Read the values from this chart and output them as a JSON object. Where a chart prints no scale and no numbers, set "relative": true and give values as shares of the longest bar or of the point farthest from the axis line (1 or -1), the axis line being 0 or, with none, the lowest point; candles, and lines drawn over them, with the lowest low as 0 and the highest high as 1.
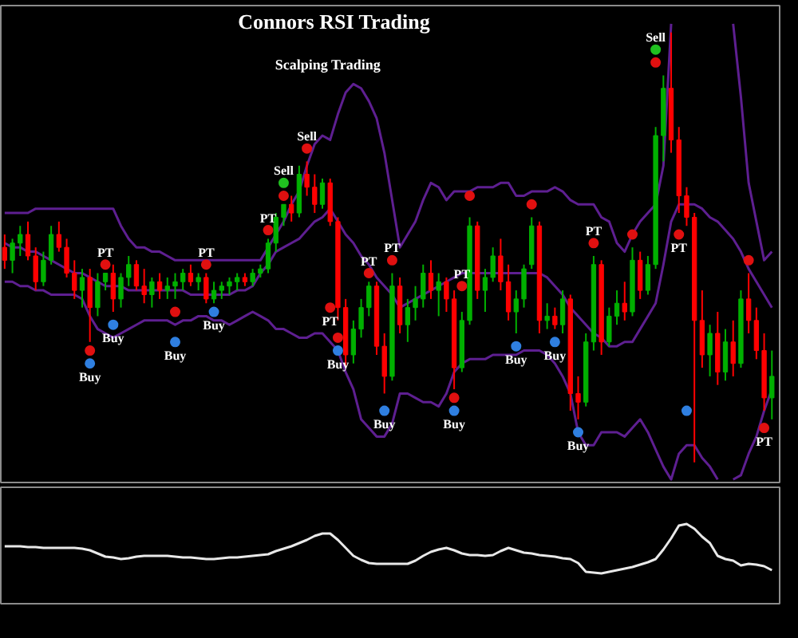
{
  "chart_data": [
    {
      "type": "candlestick",
      "title": "Connors RSI Trading",
      "subtitle": "Scalping Trading",
      "relative": true,
      "categories": [
        null,
        null,
        null,
        null,
        null,
        null,
        null,
        null,
        null,
        null,
        null,
        null,
        null,
        null,
        null,
        null,
        null,
        null,
        null,
        null,
        null,
        null,
        null,
        null,
        null,
        null,
        null,
        null,
        null,
        null,
        null,
        null,
        null,
        null,
        null,
        null,
        null,
        null,
        null,
        null,
        null,
        null,
        null,
        null,
        null,
        null,
        null,
        null,
        null,
        null,
        null,
        null,
        null,
        null,
        null,
        null,
        null,
        null,
        null,
        null,
        null,
        null,
        null,
        null,
        null,
        null,
        null,
        null,
        null,
        null,
        null,
        null,
        null,
        null,
        null,
        null,
        null,
        null,
        null,
        null,
        null,
        null,
        null,
        null,
        null,
        null,
        null,
        null,
        null,
        null,
        null,
        null,
        null,
        null,
        null,
        null,
        null,
        null,
        null,
        null
      ],
      "ohlc": [
        [
          0.5,
          0.53,
          0.45,
          0.47
        ],
        [
          0.47,
          0.52,
          0.44,
          0.51
        ],
        [
          0.51,
          0.55,
          0.48,
          0.53
        ],
        [
          0.53,
          0.56,
          0.47,
          0.48
        ],
        [
          0.48,
          0.5,
          0.4,
          0.42
        ],
        [
          0.42,
          0.49,
          0.41,
          0.47
        ],
        [
          0.47,
          0.55,
          0.46,
          0.53
        ],
        [
          0.53,
          0.56,
          0.49,
          0.5
        ],
        [
          0.5,
          0.52,
          0.43,
          0.44
        ],
        [
          0.44,
          0.47,
          0.38,
          0.4
        ],
        [
          0.4,
          0.45,
          0.36,
          0.43
        ],
        [
          0.43,
          0.45,
          0.28,
          0.36
        ],
        [
          0.36,
          0.44,
          0.34,
          0.42
        ],
        [
          0.42,
          0.44,
          0.4,
          0.44
        ],
        [
          0.44,
          0.46,
          0.35,
          0.38
        ],
        [
          0.38,
          0.44,
          0.36,
          0.43
        ],
        [
          0.43,
          0.48,
          0.41,
          0.46
        ],
        [
          0.46,
          0.47,
          0.4,
          0.41
        ],
        [
          0.41,
          0.45,
          0.37,
          0.39
        ],
        [
          0.39,
          0.43,
          0.36,
          0.42
        ],
        [
          0.42,
          0.44,
          0.38,
          0.4
        ],
        [
          0.4,
          0.43,
          0.38,
          0.41
        ],
        [
          0.41,
          0.44,
          0.38,
          0.42
        ],
        [
          0.42,
          0.45,
          0.4,
          0.44
        ],
        [
          0.44,
          0.46,
          0.41,
          0.42
        ],
        [
          0.42,
          0.44,
          0.4,
          0.43
        ],
        [
          0.43,
          0.44,
          0.37,
          0.38
        ],
        [
          0.38,
          0.42,
          0.37,
          0.4
        ],
        [
          0.4,
          0.42,
          0.38,
          0.41
        ],
        [
          0.41,
          0.43,
          0.39,
          0.42
        ],
        [
          0.42,
          0.44,
          0.4,
          0.43
        ],
        [
          0.43,
          0.44,
          0.41,
          0.42
        ],
        [
          0.42,
          0.45,
          0.41,
          0.44
        ],
        [
          0.44,
          0.46,
          0.43,
          0.45
        ],
        [
          0.45,
          0.52,
          0.44,
          0.51
        ],
        [
          0.51,
          0.58,
          0.49,
          0.57
        ],
        [
          0.57,
          0.6,
          0.55,
          0.6
        ],
        [
          0.6,
          0.62,
          0.56,
          0.58
        ],
        [
          0.58,
          0.69,
          0.57,
          0.67
        ],
        [
          0.67,
          0.7,
          0.62,
          0.64
        ],
        [
          0.64,
          0.67,
          0.58,
          0.6
        ],
        [
          0.6,
          0.66,
          0.59,
          0.65
        ],
        [
          0.65,
          0.66,
          0.55,
          0.56
        ],
        [
          0.56,
          0.57,
          0.33,
          0.36
        ],
        [
          0.36,
          0.38,
          0.22,
          0.25
        ],
        [
          0.25,
          0.33,
          0.23,
          0.31
        ],
        [
          0.31,
          0.38,
          0.29,
          0.36
        ],
        [
          0.36,
          0.42,
          0.34,
          0.41
        ],
        [
          0.41,
          0.42,
          0.25,
          0.27
        ],
        [
          0.27,
          0.3,
          0.16,
          0.2
        ],
        [
          0.2,
          0.44,
          0.19,
          0.41
        ],
        [
          0.41,
          0.43,
          0.3,
          0.32
        ],
        [
          0.32,
          0.38,
          0.28,
          0.36
        ],
        [
          0.36,
          0.41,
          0.33,
          0.38
        ],
        [
          0.38,
          0.46,
          0.36,
          0.44
        ],
        [
          0.44,
          0.47,
          0.38,
          0.4
        ],
        [
          0.4,
          0.44,
          0.34,
          0.42
        ],
        [
          0.42,
          0.43,
          0.35,
          0.38
        ],
        [
          0.38,
          0.4,
          0.17,
          0.22
        ],
        [
          0.22,
          0.35,
          0.21,
          0.33
        ],
        [
          0.33,
          0.57,
          0.32,
          0.55
        ],
        [
          0.55,
          0.56,
          0.38,
          0.4
        ],
        [
          0.4,
          0.45,
          0.35,
          0.43
        ],
        [
          0.43,
          0.5,
          0.42,
          0.48
        ],
        [
          0.48,
          0.52,
          0.4,
          0.42
        ],
        [
          0.42,
          0.46,
          0.33,
          0.35
        ],
        [
          0.35,
          0.4,
          0.3,
          0.38
        ],
        [
          0.38,
          0.46,
          0.36,
          0.45
        ],
        [
          0.46,
          0.57,
          0.45,
          0.55
        ],
        [
          0.55,
          0.56,
          0.3,
          0.33
        ],
        [
          0.33,
          0.37,
          0.31,
          0.34
        ],
        [
          0.34,
          0.36,
          0.31,
          0.32
        ],
        [
          0.32,
          0.4,
          0.3,
          0.38
        ],
        [
          0.38,
          0.39,
          0.12,
          0.16
        ],
        [
          0.16,
          0.2,
          0.1,
          0.14
        ],
        [
          0.14,
          0.3,
          0.13,
          0.28
        ],
        [
          0.28,
          0.48,
          0.26,
          0.46
        ],
        [
          0.46,
          0.47,
          0.25,
          0.28
        ],
        [
          0.28,
          0.36,
          0.27,
          0.34
        ],
        [
          0.34,
          0.4,
          0.32,
          0.37
        ],
        [
          0.37,
          0.42,
          0.33,
          0.35
        ],
        [
          0.35,
          0.5,
          0.34,
          0.47
        ],
        [
          0.47,
          0.49,
          0.38,
          0.4
        ],
        [
          0.4,
          0.48,
          0.39,
          0.46
        ],
        [
          0.46,
          0.78,
          0.45,
          0.76
        ],
        [
          0.76,
          0.9,
          0.7,
          0.87
        ],
        [
          0.87,
          1.0,
          0.72,
          0.75
        ],
        [
          0.75,
          0.78,
          0.58,
          0.62
        ],
        [
          0.62,
          0.64,
          0.55,
          0.57
        ],
        [
          0.57,
          0.58,
          0.0,
          0.33
        ],
        [
          0.33,
          0.4,
          0.22,
          0.25
        ],
        [
          0.25,
          0.32,
          0.2,
          0.3
        ],
        [
          0.3,
          0.35,
          0.18,
          0.21
        ],
        [
          0.21,
          0.31,
          0.19,
          0.28
        ],
        [
          0.28,
          0.33,
          0.2,
          0.23
        ],
        [
          0.23,
          0.4,
          0.22,
          0.38
        ],
        [
          0.38,
          0.44,
          0.3,
          0.33
        ],
        [
          0.33,
          0.36,
          0.24,
          0.26
        ],
        [
          0.26,
          0.3,
          0.12,
          0.15
        ],
        [
          0.15,
          0.26,
          0.1,
          0.2
        ]
      ],
      "colors": [
        "#ff0000",
        "#00b000",
        "#00b000",
        "#ff0000",
        "#ff0000",
        "#00b000",
        "#00b000",
        "#ff0000",
        "#ff0000",
        "#ff0000",
        "#00b000",
        "#ff0000",
        "#00b000",
        "#00b000",
        "#ff0000",
        "#00b000",
        "#00b000",
        "#ff0000",
        "#ff0000",
        "#00b000",
        "#ff0000",
        "#00b000",
        "#00b000",
        "#00b000",
        "#ff0000",
        "#00b000",
        "#ff0000",
        "#00b000",
        "#00b000",
        "#00b000",
        "#00b000",
        "#ff0000",
        "#00b000",
        "#00b000",
        "#00b000",
        "#00b000",
        "#00b000",
        "#ff0000",
        "#00b000",
        "#ff0000",
        "#ff0000",
        "#00b000",
        "#ff0000",
        "#ff0000",
        "#ff0000",
        "#00b000",
        "#00b000",
        "#00b000",
        "#ff0000",
        "#ff0000",
        "#00b000",
        "#ff0000",
        "#00b000",
        "#00b000",
        "#00b000",
        "#ff0000",
        "#00b000",
        "#ff0000",
        "#ff0000",
        "#00b000",
        "#00b000",
        "#ff0000",
        "#00b000",
        "#00b000",
        "#ff0000",
        "#ff0000",
        "#00b000",
        "#00b000",
        "#00b000",
        "#ff0000",
        "#00b000",
        "#ff0000",
        "#00b000",
        "#ff0000",
        "#ff0000",
        "#00b000",
        "#00b000",
        "#ff0000",
        "#00b000",
        "#00b000",
        "#ff0000",
        "#00b000",
        "#ff0000",
        "#00b000",
        "#00b000",
        "#00b000",
        "#ff0000",
        "#ff0000",
        "#ff0000",
        "#ff0000",
        "#ff0000",
        "#00b000",
        "#ff0000",
        "#00b000",
        "#ff0000",
        "#00b000",
        "#ff0000",
        "#ff0000",
        "#ff0000",
        "#00b000"
      ],
      "series": [
        {
          "type": "line",
          "color": "#5e1f91",
          "values": [
            0.58,
            0.58,
            0.58,
            0.58,
            0.59,
            0.59,
            0.59,
            0.59,
            0.59,
            0.59,
            0.59,
            0.59,
            0.59,
            0.59,
            0.59,
            0.55,
            0.52,
            0.5,
            0.5,
            0.49,
            0.49,
            0.48,
            0.47,
            0.47,
            0.47,
            0.47,
            0.47,
            0.47,
            0.47,
            0.47,
            0.47,
            0.47,
            0.47,
            0.47,
            0.5,
            0.53,
            0.56,
            0.6,
            0.63,
            0.69,
            0.74,
            0.76,
            0.75,
            0.81,
            0.86,
            0.88,
            0.87,
            0.84,
            0.8,
            0.72,
            0.61,
            0.5,
            0.53,
            0.56,
            0.61,
            0.65,
            0.64,
            0.61,
            0.63,
            0.63,
            0.63,
            0.64,
            0.64,
            0.64,
            0.65,
            0.65,
            0.62,
            0.62,
            0.63,
            0.63,
            0.63,
            0.64,
            0.63,
            0.61,
            0.6,
            0.6,
            0.6,
            0.57,
            0.56,
            0.51,
            0.49,
            0.53,
            0.56,
            0.58,
            0.6,
            0.69,
            1.02,
            null,
            null,
            null,
            null,
            null,
            null,
            null,
            1.02,
            0.85,
            0.65,
            0.56,
            0.47,
            0.49
          ]
        },
        {
          "type": "line",
          "color": "#5e1f91",
          "values": [
            0.51,
            0.5,
            0.5,
            0.49,
            0.49,
            0.48,
            0.47,
            0.46,
            0.45,
            0.44,
            0.44,
            0.43,
            0.42,
            0.41,
            0.41,
            0.41,
            0.4,
            0.4,
            0.4,
            0.4,
            0.4,
            0.4,
            0.4,
            0.4,
            0.39,
            0.39,
            0.39,
            0.39,
            0.39,
            0.39,
            0.4,
            0.4,
            0.41,
            0.44,
            0.46,
            0.49,
            0.5,
            0.51,
            0.52,
            0.54,
            0.56,
            0.57,
            0.59,
            0.56,
            0.53,
            0.51,
            0.48,
            0.46,
            0.43,
            0.41,
            0.39,
            0.36,
            0.37,
            0.38,
            0.39,
            0.4,
            0.41,
            0.42,
            0.43,
            0.44,
            0.44,
            0.44,
            0.44,
            0.44,
            0.44,
            0.44,
            0.44,
            0.44,
            0.44,
            0.44,
            0.43,
            0.41,
            0.39,
            0.36,
            0.34,
            0.32,
            0.3,
            0.29,
            0.27,
            0.27,
            0.28,
            0.28,
            0.31,
            0.34,
            0.37,
            0.46,
            0.56,
            0.6,
            0.6,
            0.6,
            0.59,
            0.57,
            0.56,
            0.54,
            0.52,
            0.49,
            0.45,
            0.42,
            0.39,
            0.36
          ]
        },
        {
          "type": "line",
          "color": "#5e1f91",
          "values": [
            0.42,
            0.42,
            0.41,
            0.41,
            0.4,
            0.4,
            0.39,
            0.39,
            0.39,
            0.39,
            0.38,
            0.34,
            0.31,
            0.3,
            0.29,
            0.3,
            0.31,
            0.32,
            0.33,
            0.33,
            0.33,
            0.33,
            0.32,
            0.33,
            0.33,
            0.34,
            0.34,
            0.33,
            0.33,
            0.32,
            0.33,
            0.34,
            0.35,
            0.34,
            0.33,
            0.31,
            0.31,
            0.3,
            0.29,
            0.29,
            0.3,
            0.3,
            0.28,
            0.26,
            0.21,
            0.17,
            0.1,
            0.08,
            0.06,
            0.06,
            0.09,
            0.16,
            0.16,
            0.15,
            0.14,
            0.14,
            0.13,
            0.16,
            0.21,
            0.23,
            0.24,
            0.24,
            0.24,
            0.25,
            0.25,
            0.25,
            0.25,
            0.26,
            0.26,
            0.26,
            0.25,
            0.23,
            0.2,
            0.16,
            0.07,
            0.04,
            0.04,
            0.07,
            0.07,
            0.07,
            0.06,
            0.08,
            0.1,
            0.07,
            0.03,
            -0.01,
            -0.04,
            0.02,
            0.04,
            0.04,
            0.01,
            -0.01,
            -0.04,
            null,
            -0.04,
            -0.03,
            0.02,
            0.06,
            0.12,
            0.17
          ]
        },
        {
          "type": "scatter",
          "name": "Buy",
          "color": "#2f7fe0",
          "marker": "circle",
          "values": [
            null,
            null,
            null,
            null,
            null,
            null,
            null,
            null,
            null,
            null,
            null,
            0.23,
            null,
            null,
            0.32,
            null,
            null,
            null,
            null,
            null,
            null,
            null,
            0.28,
            null,
            null,
            null,
            null,
            0.35,
            null,
            null,
            null,
            null,
            null,
            null,
            null,
            null,
            null,
            null,
            null,
            null,
            null,
            null,
            null,
            0.26,
            null,
            null,
            null,
            null,
            null,
            0.12,
            null,
            null,
            null,
            null,
            null,
            null,
            null,
            null,
            0.12,
            null,
            null,
            null,
            null,
            null,
            null,
            null,
            0.27,
            null,
            null,
            null,
            null,
            0.28,
            null,
            null,
            0.07,
            null,
            null,
            null,
            null,
            null,
            null,
            null,
            null,
            null,
            null,
            null,
            null,
            null,
            null,
            null,
            null,
            null,
            null,
            null,
            null,
            null,
            null,
            null,
            null,
            null
          ]
        },
        {
          "type": "scatter",
          "name": "Sell",
          "color": "#e01010",
          "marker": "circle",
          "values": [
            null,
            null,
            null,
            null,
            null,
            null,
            null,
            null,
            null,
            null,
            null,
            null,
            null,
            null,
            null,
            null,
            null,
            null,
            null,
            null,
            null,
            null,
            null,
            null,
            null,
            null,
            null,
            null,
            null,
            null,
            null,
            null,
            null,
            null,
            null,
            null,
            0.62,
            null,
            null,
            0.73,
            null,
            null,
            null,
            null,
            null,
            null,
            null,
            null,
            null,
            null,
            null,
            null,
            null,
            null,
            null,
            null,
            null,
            null,
            null,
            null,
            null,
            null,
            null,
            null,
            null,
            null,
            null,
            null,
            null,
            null,
            null,
            null,
            null,
            null,
            null,
            null,
            null,
            null,
            null,
            null,
            null,
            null,
            null,
            null,
            0.93,
            null,
            null,
            null,
            null,
            null,
            null,
            null,
            null,
            null,
            null,
            null,
            null,
            null,
            null,
            null
          ]
        },
        {
          "type": "scatter",
          "name": "PT",
          "color": "#e01010",
          "marker": "circle",
          "values": [
            null,
            null,
            null,
            null,
            null,
            null,
            null,
            null,
            null,
            null,
            null,
            null,
            null,
            0.46,
            null,
            null,
            null,
            null,
            null,
            null,
            null,
            null,
            null,
            null,
            null,
            null,
            0.46,
            null,
            null,
            null,
            null,
            null,
            null,
            null,
            0.54,
            null,
            null,
            null,
            null,
            null,
            null,
            null,
            0.36,
            null,
            null,
            null,
            null,
            0.44,
            null,
            null,
            0.47,
            null,
            null,
            null,
            null,
            null,
            null,
            null,
            null,
            0.41,
            null,
            null,
            null,
            null,
            null,
            null,
            null,
            null,
            null,
            null,
            null,
            null,
            null,
            null,
            null,
            null,
            0.51,
            null,
            null,
            null,
            null,
            null,
            null,
            null,
            null,
            null,
            null,
            0.53,
            null,
            null,
            null,
            null,
            null,
            null,
            null,
            null,
            null,
            null,
            0.08,
            null
          ]
        },
        {
          "type": "scatter",
          "color": "#e01010",
          "marker": "circle",
          "values": [
            null,
            null,
            null,
            null,
            null,
            null,
            null,
            null,
            null,
            null,
            null,
            0.26,
            null,
            null,
            null,
            null,
            null,
            null,
            null,
            null,
            null,
            null,
            0.35,
            null,
            null,
            null,
            null,
            null,
            null,
            null,
            null,
            null,
            null,
            null,
            null,
            null,
            null,
            null,
            null,
            null,
            null,
            null,
            null,
            0.29,
            null,
            null,
            null,
            null,
            null,
            null,
            null,
            null,
            null,
            null,
            null,
            null,
            null,
            null,
            0.15,
            null,
            0.62,
            null,
            null,
            null,
            null,
            null,
            null,
            null,
            0.6,
            null,
            null,
            null,
            null,
            null,
            null,
            null,
            null,
            null,
            null,
            null,
            null,
            0.53,
            null,
            null,
            null,
            null,
            null,
            null,
            null,
            null,
            null,
            null,
            null,
            null,
            null,
            null,
            0.47,
            null,
            null,
            null
          ]
        },
        {
          "type": "scatter",
          "color": "#20c020",
          "marker": "circle",
          "values": [
            null,
            null,
            null,
            null,
            null,
            null,
            null,
            null,
            null,
            null,
            null,
            null,
            null,
            null,
            null,
            null,
            null,
            null,
            null,
            null,
            null,
            null,
            null,
            null,
            null,
            null,
            null,
            null,
            null,
            null,
            null,
            null,
            null,
            null,
            null,
            null,
            0.65,
            null,
            null,
            null,
            null,
            null,
            null,
            null,
            null,
            null,
            null,
            null,
            null,
            null,
            null,
            null,
            null,
            null,
            null,
            null,
            null,
            null,
            null,
            null,
            null,
            null,
            null,
            null,
            null,
            null,
            null,
            null,
            null,
            null,
            null,
            null,
            null,
            null,
            null,
            null,
            null,
            null,
            null,
            null,
            null,
            null,
            null,
            null,
            0.96,
            null,
            null,
            null,
            null,
            null,
            null,
            null,
            null,
            null,
            null,
            null,
            null,
            null,
            null,
            null
          ]
        },
        {
          "type": "scatter",
          "color": "#2f7fe0",
          "marker": "circle",
          "values": [
            null,
            null,
            null,
            null,
            null,
            null,
            null,
            null,
            null,
            null,
            null,
            null,
            null,
            null,
            null,
            null,
            null,
            null,
            null,
            null,
            null,
            null,
            null,
            null,
            null,
            null,
            null,
            null,
            null,
            null,
            null,
            null,
            null,
            null,
            null,
            null,
            null,
            null,
            null,
            null,
            null,
            null,
            null,
            null,
            null,
            null,
            null,
            null,
            null,
            null,
            null,
            null,
            null,
            null,
            null,
            null,
            null,
            null,
            null,
            null,
            null,
            null,
            null,
            null,
            null,
            null,
            null,
            null,
            null,
            null,
            null,
            null,
            null,
            null,
            null,
            null,
            null,
            null,
            null,
            null,
            null,
            null,
            null,
            null,
            null,
            null,
            null,
            null,
            0.12,
            null,
            null,
            null,
            null,
            null,
            null,
            null,
            null,
            null,
            null,
            null
          ]
        }
      ]
    },
    {
      "type": "line",
      "relative": true,
      "categories": [
        null,
        null,
        null,
        null,
        null,
        null,
        null,
        null,
        null,
        null,
        null,
        null,
        null,
        null,
        null,
        null,
        null,
        null,
        null,
        null,
        null,
        null,
        null,
        null,
        null,
        null,
        null,
        null,
        null,
        null,
        null,
        null,
        null,
        null,
        null,
        null,
        null,
        null,
        null,
        null,
        null,
        null,
        null,
        null,
        null,
        null,
        null,
        null,
        null,
        null,
        null,
        null,
        null,
        null,
        null,
        null,
        null,
        null,
        null,
        null,
        null,
        null,
        null,
        null,
        null,
        null,
        null,
        null,
        null,
        null,
        null,
        null,
        null,
        null,
        null,
        null,
        null,
        null,
        null,
        null,
        null,
        null,
        null,
        null,
        null,
        null,
        null,
        null,
        null,
        null,
        null,
        null,
        null,
        null,
        null,
        null,
        null,
        null,
        null,
        null
      ],
      "series": [
        {
          "color": "#e8e8e8",
          "values": [
            0.72,
            0.72,
            0.72,
            0.71,
            0.71,
            0.7,
            0.7,
            0.7,
            0.7,
            0.7,
            0.69,
            0.67,
            0.63,
            0.59,
            0.58,
            0.56,
            0.57,
            0.59,
            0.6,
            0.6,
            0.6,
            0.6,
            0.59,
            0.58,
            0.58,
            0.57,
            0.56,
            0.56,
            0.57,
            0.58,
            0.58,
            0.59,
            0.6,
            0.61,
            0.62,
            0.66,
            0.69,
            0.72,
            0.76,
            0.8,
            0.85,
            0.88,
            0.88,
            0.8,
            0.7,
            0.6,
            0.55,
            0.51,
            0.5,
            0.5,
            0.5,
            0.5,
            0.5,
            0.54,
            0.6,
            0.65,
            0.68,
            0.7,
            0.67,
            0.63,
            0.61,
            0.61,
            0.6,
            0.61,
            0.66,
            0.7,
            0.67,
            0.64,
            0.63,
            0.61,
            0.6,
            0.59,
            0.57,
            0.56,
            0.51,
            0.4,
            0.39,
            0.38,
            0.4,
            0.42,
            0.44,
            0.46,
            0.49,
            0.52,
            0.56,
            0.68,
            0.82,
            0.98,
            1.0,
            0.94,
            0.84,
            0.76,
            0.6,
            0.56,
            0.54,
            0.48,
            0.5,
            0.49,
            0.47,
            0.42
          ]
        }
      ]
    }
  ]
}
